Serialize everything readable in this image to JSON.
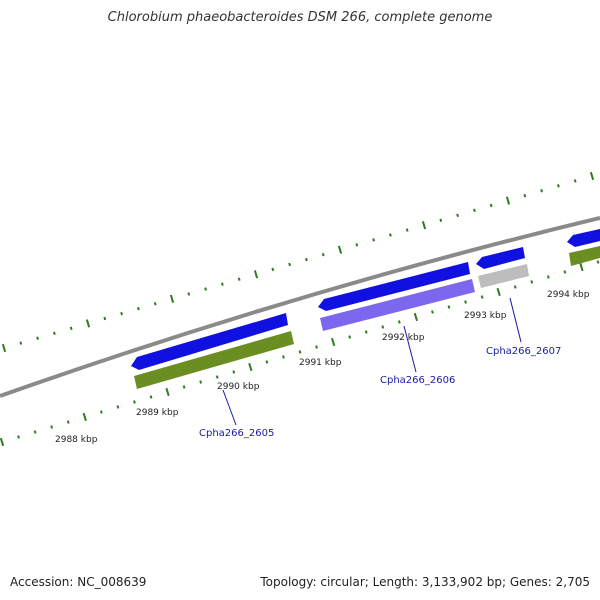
{
  "title": "Chlorobium phaeobacteroides DSM 266, complete genome",
  "footer": {
    "accession": "Accession: NC_008639",
    "stats": "Topology: circular; Length: 3,133,902 bp; Genes: 2,705"
  },
  "colors": {
    "backbone": "#8a8a8a",
    "tick": "#2e7d1e",
    "gene_forward": "#1010e0",
    "cds_green": "#6b8e23",
    "cds_purple": "#7b68ee",
    "cds_grey": "#bdbdbd",
    "label": "#1a1aa6"
  },
  "scale": {
    "unit": "kbp",
    "labels": [
      "2988 kbp",
      "2989 kbp",
      "2990 kbp",
      "2991 kbp",
      "2992 kbp",
      "2993 kbp",
      "2994 kbp"
    ]
  },
  "genes": [
    {
      "name": "Cpha266_2605",
      "feature_color": "cds_green"
    },
    {
      "name": "Cpha266_2606",
      "feature_color": "cds_purple"
    },
    {
      "name": "Cpha266_2607",
      "feature_color": "cds_grey"
    }
  ]
}
